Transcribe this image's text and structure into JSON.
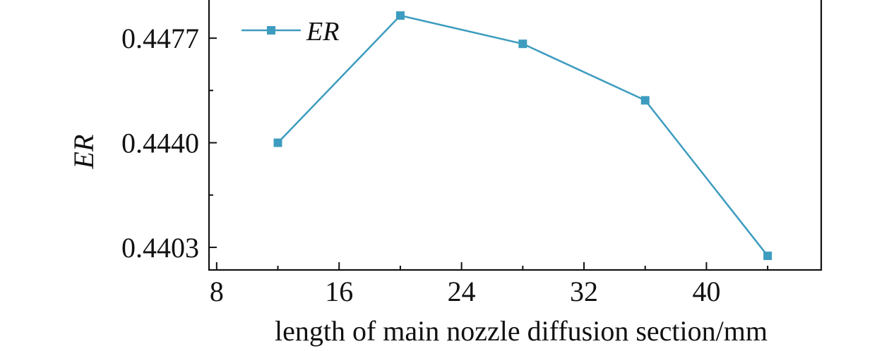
{
  "chart_data": {
    "type": "line",
    "x": [
      12,
      20,
      28,
      36,
      44
    ],
    "series": [
      {
        "name": "ER",
        "values": [
          0.444,
          0.4485,
          0.4475,
          0.4455,
          0.44
        ]
      }
    ],
    "xlabel": "length of main nozzle diffusion section/mm",
    "ylabel": "ER",
    "xlim": [
      7.5,
      47.5
    ],
    "ylim": [
      0.4395,
      0.4491
    ],
    "x_ticks": [
      8,
      16,
      24,
      32,
      40
    ],
    "x_tick_labels": [
      "8",
      "16",
      "24",
      "32",
      "40"
    ],
    "y_ticks": [
      0.4403,
      0.444,
      0.4477
    ],
    "y_tick_labels": [
      "0.4403",
      "0.4440",
      "0.4477"
    ],
    "legend_position": "top-left",
    "grid": false,
    "line_color": "#3d9cbf",
    "marker": "square"
  }
}
